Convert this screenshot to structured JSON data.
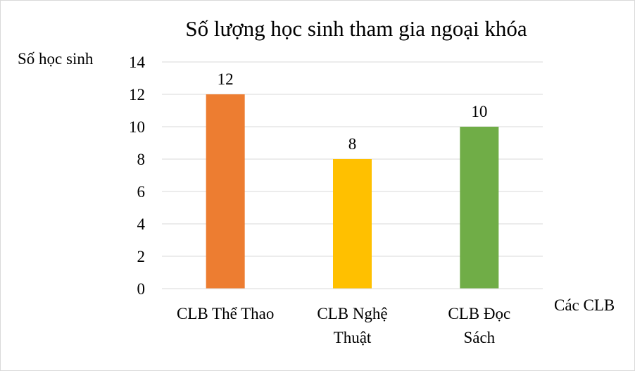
{
  "chart_data": {
    "type": "bar",
    "title": "Số lượng học sinh tham gia ngoại khóa",
    "ylabel": "Số học sinh",
    "xlabel": "Các CLB",
    "categories": [
      [
        "CLB Thể Thao"
      ],
      [
        "CLB Nghệ",
        "Thuật"
      ],
      [
        "CLB Đọc",
        "Sách"
      ]
    ],
    "values": [
      12,
      8,
      10
    ],
    "data_labels": [
      "12",
      "8",
      "10"
    ],
    "colors": [
      "#ED7D31",
      "#FFC000",
      "#70AD47"
    ],
    "ylim": [
      0,
      14
    ],
    "yticks": [
      0,
      2,
      4,
      6,
      8,
      10,
      12,
      14
    ],
    "grid": true,
    "legend": "none"
  }
}
